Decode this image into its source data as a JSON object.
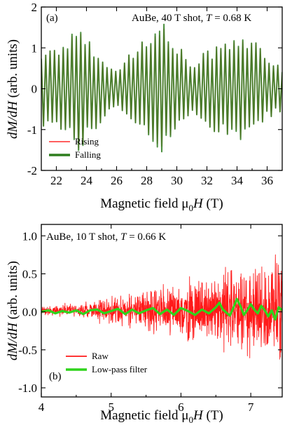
{
  "chart_data": [
    {
      "type": "line",
      "panel_label": "(a)",
      "annotation": {
        "prefix": "AuBe, 40 T shot, ",
        "variable": "T",
        "suffix": " = 0.68 K"
      },
      "xlabel": {
        "text": "Magnetic field μ",
        "sub": "0",
        "italic": "H",
        "unit": " (T)"
      },
      "ylabel": {
        "italic": "dM/dH",
        "unit": " (arb. units)"
      },
      "xlim": [
        21,
        37
      ],
      "ylim": [
        -2,
        2
      ],
      "xticks": [
        "22",
        "24",
        "26",
        "28",
        "30",
        "32",
        "34",
        "36"
      ],
      "yticks": [
        "2",
        "1",
        "0",
        "-1",
        "-2"
      ],
      "legend_position": "bottom-left",
      "series": [
        {
          "name": "Rising",
          "color": "#ff2a2a",
          "oscillation": {
            "x_start": 21,
            "x_end": 37,
            "cycles": 55,
            "mean": 0
          },
          "envelope": [
            [
              21.0,
              0.95
            ],
            [
              22.0,
              1.05
            ],
            [
              23.0,
              1.3
            ],
            [
              23.5,
              1.7
            ],
            [
              24.0,
              1.25
            ],
            [
              25.0,
              0.9
            ],
            [
              25.5,
              0.55
            ],
            [
              26.0,
              0.45
            ],
            [
              26.5,
              0.8
            ],
            [
              27.5,
              1.15
            ],
            [
              28.5,
              1.35
            ],
            [
              29.0,
              1.6
            ],
            [
              29.5,
              1.4
            ],
            [
              30.0,
              1.15
            ],
            [
              30.5,
              0.85
            ],
            [
              31.0,
              0.6
            ],
            [
              32.0,
              0.95
            ],
            [
              33.0,
              1.15
            ],
            [
              34.0,
              1.4
            ],
            [
              35.0,
              1.2
            ],
            [
              35.5,
              1.05
            ],
            [
              36.0,
              0.75
            ],
            [
              37.0,
              0.55
            ]
          ]
        },
        {
          "name": "Falling",
          "color": "#2e7d1e",
          "oscillation": {
            "x_start": 21,
            "x_end": 37,
            "cycles": 55,
            "mean": 0
          },
          "envelope": [
            [
              21.0,
              0.95
            ],
            [
              22.0,
              1.05
            ],
            [
              23.0,
              1.35
            ],
            [
              23.5,
              1.75
            ],
            [
              24.0,
              1.3
            ],
            [
              25.0,
              0.9
            ],
            [
              25.5,
              0.55
            ],
            [
              26.0,
              0.45
            ],
            [
              26.5,
              0.8
            ],
            [
              27.5,
              1.15
            ],
            [
              28.5,
              1.4
            ],
            [
              29.0,
              1.75
            ],
            [
              29.5,
              1.45
            ],
            [
              30.0,
              1.15
            ],
            [
              30.5,
              0.85
            ],
            [
              31.0,
              0.6
            ],
            [
              32.0,
              0.95
            ],
            [
              33.0,
              1.15
            ],
            [
              34.0,
              1.45
            ],
            [
              35.0,
              1.2
            ],
            [
              35.5,
              1.05
            ],
            [
              36.0,
              0.75
            ],
            [
              37.0,
              0.55
            ]
          ]
        }
      ]
    },
    {
      "type": "line",
      "panel_label": "(b)",
      "annotation": {
        "prefix": "AuBe, 10 T shot, ",
        "variable": "T",
        "suffix": " = 0.66 K"
      },
      "xlabel": {
        "text": "Magnetic field μ",
        "sub": "0",
        "italic": "H",
        "unit": " (T)"
      },
      "ylabel": {
        "italic": "dM/dH",
        "unit": " (arb. units)"
      },
      "xlim": [
        4,
        7.45
      ],
      "ylim": [
        -1.12,
        1.15
      ],
      "xticks": [
        "4",
        "5",
        "6",
        "7"
      ],
      "yticks": [
        "1.0",
        "0.5",
        "0.0",
        "-0.5",
        "-1.0"
      ],
      "legend_position": "bottom-left",
      "series": [
        {
          "name": "Raw",
          "color": "#ff1a1a",
          "noise": {
            "x_start": 4.0,
            "x_end": 7.45,
            "points": 1100,
            "mean": 0.02
          },
          "envelope": [
            [
              4.0,
              0.08
            ],
            [
              4.3,
              0.1
            ],
            [
              4.6,
              0.12
            ],
            [
              4.8,
              0.18
            ],
            [
              5.0,
              0.25
            ],
            [
              5.3,
              0.3
            ],
            [
              5.6,
              0.38
            ],
            [
              5.9,
              0.48
            ],
            [
              6.2,
              0.55
            ],
            [
              6.5,
              0.65
            ],
            [
              6.8,
              0.8
            ],
            [
              7.1,
              0.88
            ],
            [
              7.3,
              0.95
            ],
            [
              7.45,
              1.0
            ]
          ]
        },
        {
          "name": "Low-pass filter",
          "color": "#2fd41c",
          "values": [
            [
              4.0,
              0.0
            ],
            [
              4.1,
              0.02
            ],
            [
              4.2,
              -0.02
            ],
            [
              4.3,
              0.01
            ],
            [
              4.4,
              -0.01
            ],
            [
              4.5,
              0.02
            ],
            [
              4.6,
              -0.03
            ],
            [
              4.7,
              0.02
            ],
            [
              4.8,
              0.03
            ],
            [
              4.9,
              -0.02
            ],
            [
              5.0,
              0.01
            ],
            [
              5.1,
              0.04
            ],
            [
              5.2,
              -0.03
            ],
            [
              5.3,
              0.03
            ],
            [
              5.4,
              -0.02
            ],
            [
              5.5,
              0.02
            ],
            [
              5.6,
              0.05
            ],
            [
              5.7,
              -0.03
            ],
            [
              5.8,
              0.03
            ],
            [
              5.9,
              -0.04
            ],
            [
              6.0,
              0.05
            ],
            [
              6.1,
              0.01
            ],
            [
              6.2,
              -0.04
            ],
            [
              6.3,
              0.03
            ],
            [
              6.4,
              -0.02
            ],
            [
              6.5,
              0.06
            ],
            [
              6.55,
              0.12
            ],
            [
              6.6,
              0.03
            ],
            [
              6.7,
              -0.05
            ],
            [
              6.75,
              0.05
            ],
            [
              6.8,
              0.17
            ],
            [
              6.85,
              0.08
            ],
            [
              6.9,
              -0.04
            ],
            [
              6.95,
              0.02
            ],
            [
              7.0,
              0.1
            ],
            [
              7.05,
              0.03
            ],
            [
              7.1,
              -0.02
            ],
            [
              7.15,
              0.08
            ],
            [
              7.2,
              0.02
            ],
            [
              7.25,
              -0.06
            ],
            [
              7.3,
              0.02
            ],
            [
              7.35,
              -0.1
            ],
            [
              7.4,
              0.06
            ],
            [
              7.45,
              0.02
            ]
          ]
        }
      ]
    }
  ]
}
